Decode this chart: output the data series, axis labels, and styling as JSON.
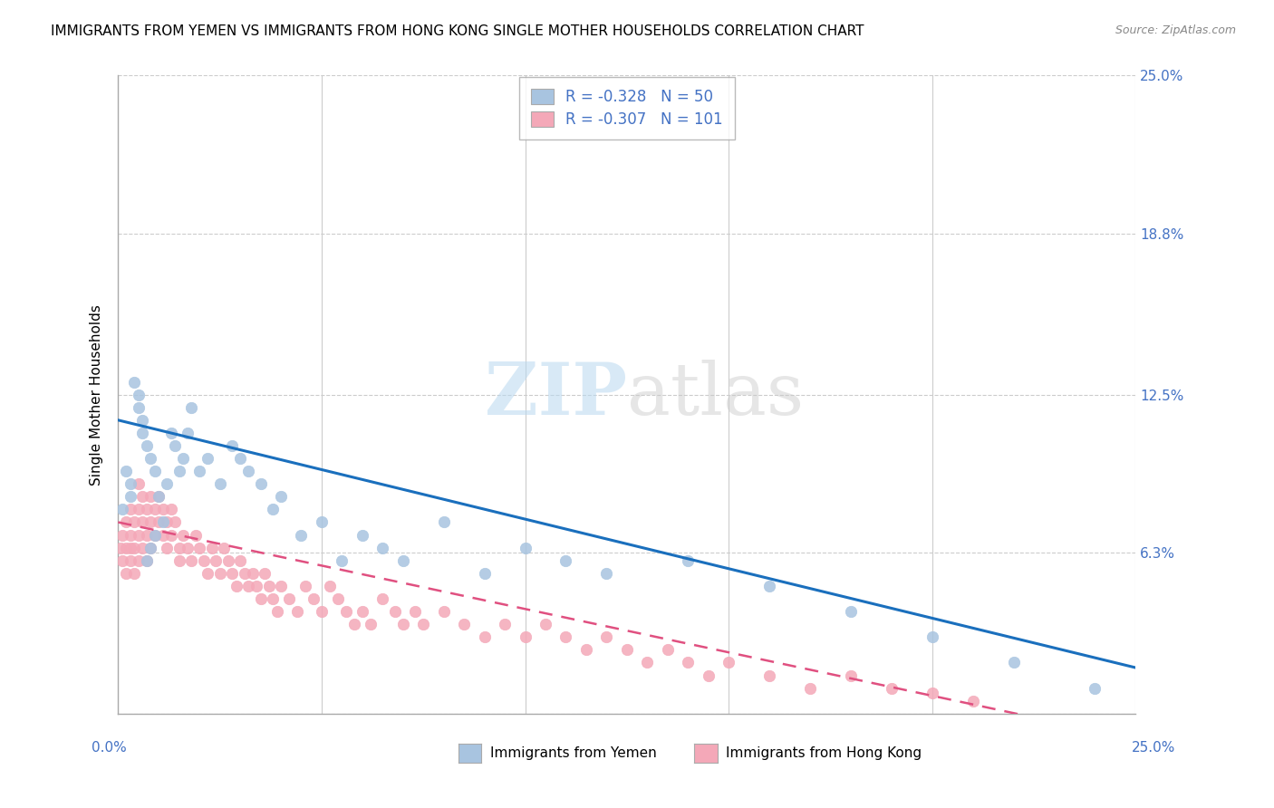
{
  "title": "IMMIGRANTS FROM YEMEN VS IMMIGRANTS FROM HONG KONG SINGLE MOTHER HOUSEHOLDS CORRELATION CHART",
  "source": "Source: ZipAtlas.com",
  "ylabel": "Single Mother Households",
  "xlim": [
    0.0,
    0.25
  ],
  "ylim": [
    0.0,
    0.25
  ],
  "r_yemen": -0.328,
  "n_yemen": 50,
  "r_hongkong": -0.307,
  "n_hongkong": 101,
  "legend_label_yemen": "Immigrants from Yemen",
  "legend_label_hongkong": "Immigrants from Hong Kong",
  "color_yemen": "#a8c4e0",
  "color_hongkong": "#f4a8b8",
  "line_color_yemen": "#1a6fbd",
  "line_color_hongkong": "#e05080",
  "watermark_zip": "ZIP",
  "watermark_atlas": "atlas",
  "yemen_scatter_x": [
    0.001,
    0.002,
    0.003,
    0.003,
    0.004,
    0.005,
    0.005,
    0.006,
    0.006,
    0.007,
    0.007,
    0.008,
    0.008,
    0.009,
    0.009,
    0.01,
    0.011,
    0.012,
    0.013,
    0.014,
    0.015,
    0.016,
    0.017,
    0.018,
    0.02,
    0.022,
    0.025,
    0.028,
    0.03,
    0.032,
    0.035,
    0.038,
    0.04,
    0.045,
    0.05,
    0.055,
    0.06,
    0.065,
    0.07,
    0.08,
    0.09,
    0.1,
    0.11,
    0.12,
    0.14,
    0.16,
    0.18,
    0.2,
    0.22,
    0.24
  ],
  "yemen_scatter_y": [
    0.08,
    0.095,
    0.09,
    0.085,
    0.13,
    0.125,
    0.12,
    0.115,
    0.11,
    0.105,
    0.06,
    0.065,
    0.1,
    0.095,
    0.07,
    0.085,
    0.075,
    0.09,
    0.11,
    0.105,
    0.095,
    0.1,
    0.11,
    0.12,
    0.095,
    0.1,
    0.09,
    0.105,
    0.1,
    0.095,
    0.09,
    0.08,
    0.085,
    0.07,
    0.075,
    0.06,
    0.07,
    0.065,
    0.06,
    0.075,
    0.055,
    0.065,
    0.06,
    0.055,
    0.06,
    0.05,
    0.04,
    0.03,
    0.02,
    0.01
  ],
  "hongkong_scatter_x": [
    0.0005,
    0.001,
    0.001,
    0.002,
    0.002,
    0.002,
    0.003,
    0.003,
    0.003,
    0.003,
    0.004,
    0.004,
    0.004,
    0.005,
    0.005,
    0.005,
    0.005,
    0.006,
    0.006,
    0.006,
    0.007,
    0.007,
    0.007,
    0.008,
    0.008,
    0.008,
    0.009,
    0.009,
    0.01,
    0.01,
    0.011,
    0.011,
    0.012,
    0.012,
    0.013,
    0.013,
    0.014,
    0.015,
    0.015,
    0.016,
    0.017,
    0.018,
    0.019,
    0.02,
    0.021,
    0.022,
    0.023,
    0.024,
    0.025,
    0.026,
    0.027,
    0.028,
    0.029,
    0.03,
    0.031,
    0.032,
    0.033,
    0.034,
    0.035,
    0.036,
    0.037,
    0.038,
    0.039,
    0.04,
    0.042,
    0.044,
    0.046,
    0.048,
    0.05,
    0.052,
    0.054,
    0.056,
    0.058,
    0.06,
    0.062,
    0.065,
    0.068,
    0.07,
    0.073,
    0.075,
    0.08,
    0.085,
    0.09,
    0.095,
    0.1,
    0.105,
    0.11,
    0.115,
    0.12,
    0.125,
    0.13,
    0.135,
    0.14,
    0.145,
    0.15,
    0.16,
    0.17,
    0.18,
    0.19,
    0.2,
    0.21
  ],
  "hongkong_scatter_y": [
    0.065,
    0.07,
    0.06,
    0.075,
    0.065,
    0.055,
    0.07,
    0.06,
    0.065,
    0.08,
    0.075,
    0.065,
    0.055,
    0.08,
    0.07,
    0.06,
    0.09,
    0.085,
    0.075,
    0.065,
    0.08,
    0.07,
    0.06,
    0.085,
    0.075,
    0.065,
    0.08,
    0.07,
    0.075,
    0.085,
    0.08,
    0.07,
    0.075,
    0.065,
    0.08,
    0.07,
    0.075,
    0.065,
    0.06,
    0.07,
    0.065,
    0.06,
    0.07,
    0.065,
    0.06,
    0.055,
    0.065,
    0.06,
    0.055,
    0.065,
    0.06,
    0.055,
    0.05,
    0.06,
    0.055,
    0.05,
    0.055,
    0.05,
    0.045,
    0.055,
    0.05,
    0.045,
    0.04,
    0.05,
    0.045,
    0.04,
    0.05,
    0.045,
    0.04,
    0.05,
    0.045,
    0.04,
    0.035,
    0.04,
    0.035,
    0.045,
    0.04,
    0.035,
    0.04,
    0.035,
    0.04,
    0.035,
    0.03,
    0.035,
    0.03,
    0.035,
    0.03,
    0.025,
    0.03,
    0.025,
    0.02,
    0.025,
    0.02,
    0.015,
    0.02,
    0.015,
    0.01,
    0.015,
    0.01,
    0.008,
    0.005
  ]
}
